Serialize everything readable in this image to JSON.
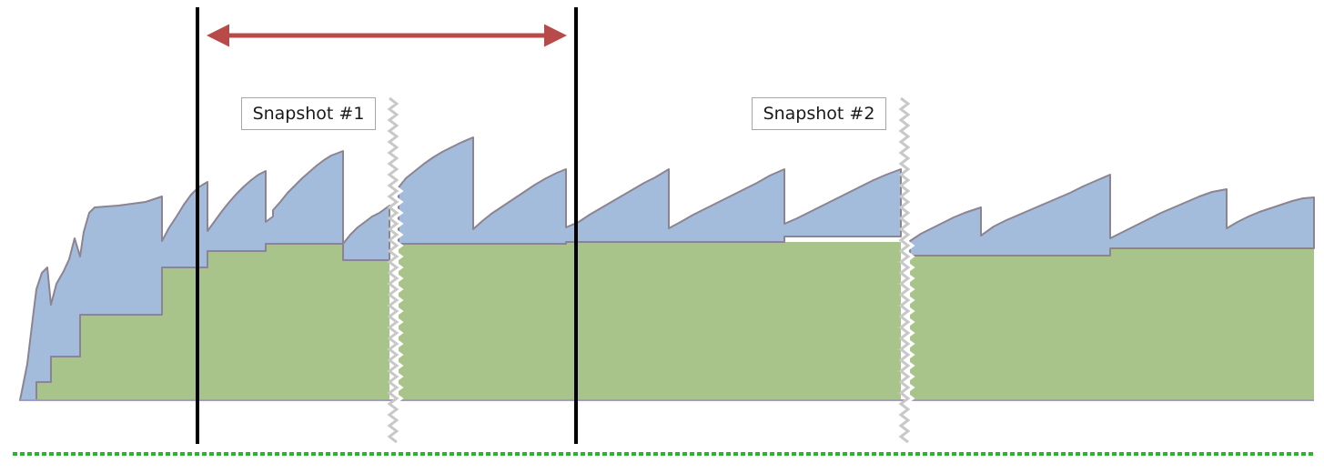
{
  "snapshots": [
    {
      "label": "Snapshot #1"
    },
    {
      "label": "Snapshot #2"
    }
  ],
  "colors": {
    "blue_area": "#a4bcdc",
    "red_area": "#d49496",
    "green_area": "#a9c48b",
    "outline": "#8c8490",
    "baseline": "#a49ac6",
    "marker_line": "#000000",
    "arrow": "#b84a4a",
    "zigzag": "#c8c8c8",
    "dashed_line": "#2bb52b"
  }
}
